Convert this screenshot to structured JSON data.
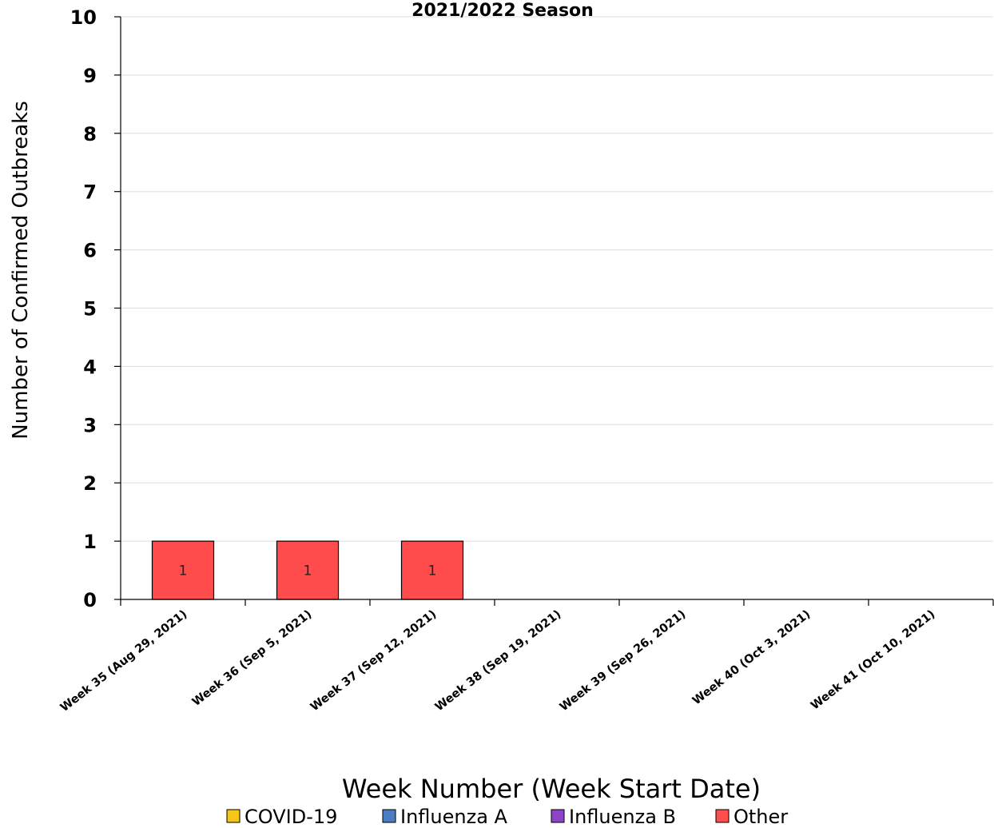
{
  "chart_data": {
    "type": "bar",
    "stacked": true,
    "title": "2021/2022 Season",
    "xlabel": "Week Number (Week Start Date)",
    "ylabel": "Number of Confirmed Outbreaks",
    "ylim": [
      0,
      10
    ],
    "yticks": [
      "0",
      "1",
      "2",
      "3",
      "4",
      "5",
      "6",
      "7",
      "8",
      "9",
      "10"
    ],
    "grid": true,
    "legend_position": "bottom",
    "categories": [
      "Week 35 (Aug 29, 2021)",
      "Week 36 (Sep 5, 2021)",
      "Week 37 (Sep 12, 2021)",
      "Week 38 (Sep 19, 2021)",
      "Week 39 (Sep 26, 2021)",
      "Week 40 (Oct 3, 2021)",
      "Week 41 (Oct 10, 2021)"
    ],
    "series": [
      {
        "name": "COVID-19",
        "color": "#F5C518",
        "values": [
          0,
          0,
          0,
          0,
          0,
          0,
          0
        ]
      },
      {
        "name": "Influenza A",
        "color": "#4A7EC2",
        "values": [
          0,
          0,
          0,
          0,
          0,
          0,
          0
        ]
      },
      {
        "name": "Influenza B",
        "color": "#8E44C9",
        "values": [
          0,
          0,
          0,
          0,
          0,
          0,
          0
        ]
      },
      {
        "name": "Other",
        "color": "#FF4D4D",
        "values": [
          1,
          1,
          1,
          0,
          0,
          0,
          0
        ]
      }
    ]
  }
}
